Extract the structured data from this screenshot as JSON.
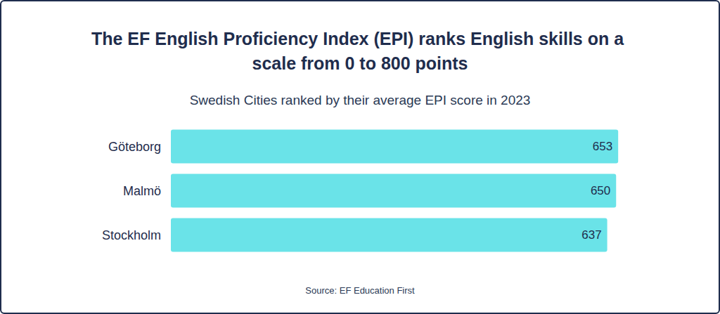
{
  "chart_data": {
    "type": "bar",
    "title": "The EF English Proficiency Index (EPI) ranks English skills on a scale from 0 to 800 points",
    "subtitle": "Swedish Cities ranked by their average EPI score in 2023",
    "source": "Source: EF Education First",
    "orientation": "horizontal",
    "categories": [
      "Göteborg",
      "Malmö",
      "Stockholm"
    ],
    "values": [
      653,
      650,
      637
    ],
    "color": "#6ae3e8",
    "xlim": [
      0,
      660
    ],
    "xticks": [
      0,
      660
    ],
    "grid": false,
    "tick_labels": "y",
    "data_labels": true
  }
}
